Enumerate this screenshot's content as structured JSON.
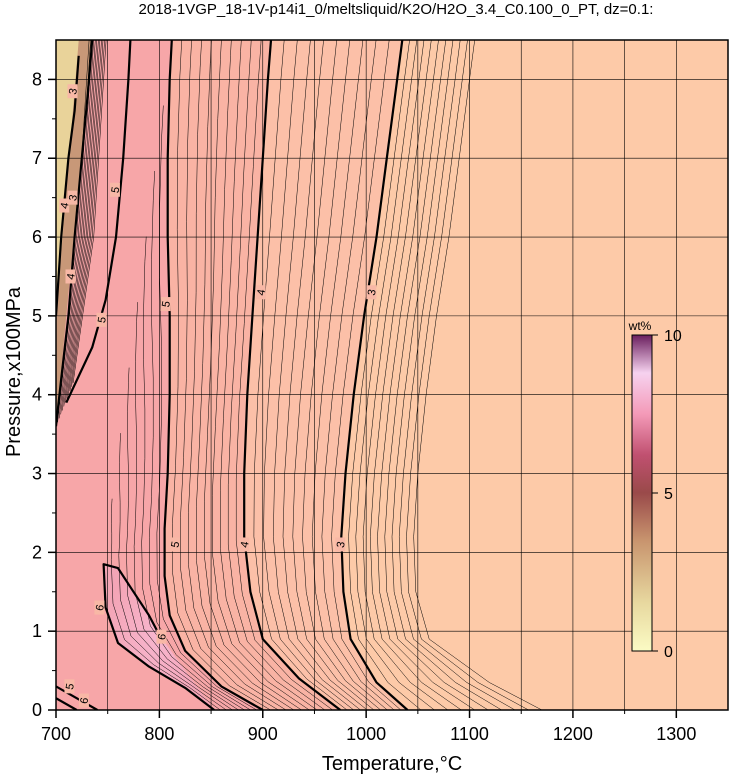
{
  "chart_data": {
    "type": "contour",
    "title": "2018-1VGP_18-1V-p14i1_0/meltsliquid/K2O/H2O_3.4_C0.100_0_PT, dz=0.1:",
    "xlabel": "Temperature,°C",
    "ylabel": "Pressure,x100MPa",
    "xlim": [
      700,
      1350
    ],
    "ylim": [
      0,
      8.5
    ],
    "xticks": [
      "700",
      "800",
      "900",
      "1000",
      "1100",
      "1200",
      "1300"
    ],
    "yticks": [
      "0",
      "1",
      "2",
      "3",
      "4",
      "5",
      "6",
      "7",
      "8"
    ],
    "grid": true,
    "colorbar": {
      "unit": "wt%",
      "min": 0,
      "max": 10,
      "ticks": [
        "0",
        "5",
        "10"
      ],
      "placement": "right-inside"
    },
    "major_contours": [
      {
        "level": "3",
        "points": [
          [
            1040,
            0
          ],
          [
            1010,
            0.35
          ],
          [
            985,
            0.9
          ],
          [
            978,
            1.5
          ],
          [
            976,
            2.2
          ],
          [
            980,
            3.0
          ],
          [
            988,
            4.0
          ],
          [
            998,
            5.0
          ],
          [
            1010,
            6.0
          ],
          [
            1020,
            7.0
          ],
          [
            1030,
            8.0
          ],
          [
            1035,
            8.5
          ]
        ],
        "labels": [
          [
            975,
            2.1
          ],
          [
            1005,
            5.3
          ]
        ]
      },
      {
        "level": "4",
        "points": [
          [
            975,
            0
          ],
          [
            935,
            0.4
          ],
          [
            900,
            0.9
          ],
          [
            888,
            1.5
          ],
          [
            882,
            2.2
          ],
          [
            882,
            3.0
          ],
          [
            885,
            4.0
          ],
          [
            890,
            5.0
          ],
          [
            895,
            6.0
          ],
          [
            900,
            7.0
          ],
          [
            905,
            8.0
          ],
          [
            908,
            8.5
          ]
        ],
        "labels": [
          [
            882,
            2.1
          ],
          [
            898,
            5.3
          ]
        ]
      },
      {
        "level": "5",
        "points": [
          [
            900,
            0
          ],
          [
            860,
            0.3
          ],
          [
            825,
            0.75
          ],
          [
            810,
            1.2
          ],
          [
            805,
            1.7
          ],
          [
            805,
            2.3
          ],
          [
            808,
            3.0
          ],
          [
            810,
            4.0
          ],
          [
            810,
            5.0
          ],
          [
            808,
            6.0
          ],
          [
            808,
            7.0
          ],
          [
            810,
            8.0
          ],
          [
            812,
            8.5
          ]
        ],
        "labels": [
          [
            815,
            2.1
          ],
          [
            806,
            5.15
          ]
        ]
      },
      {
        "level": "6",
        "points": [
          [
            853,
            0
          ],
          [
            825,
            0.28
          ],
          [
            790,
            0.55
          ],
          [
            760,
            0.85
          ],
          [
            748,
            1.3
          ],
          [
            746,
            1.85
          ],
          [
            760,
            1.8
          ],
          [
            775,
            1.5
          ],
          [
            790,
            1.2
          ],
          [
            800,
            0.95
          ]
        ],
        "labels": [
          [
            802,
            0.93
          ],
          [
            742,
            1.3
          ]
        ]
      },
      {
        "level": "5",
        "points": [
          [
            700,
            0.3
          ],
          [
            740,
            0
          ]
        ],
        "labels": [
          [
            713,
            0.3
          ]
        ]
      },
      {
        "level": "6",
        "points": [
          [
            700,
            0.15
          ],
          [
            720,
            0
          ]
        ],
        "labels": [
          [
            727,
            0.12
          ]
        ]
      },
      {
        "level": "5",
        "points": [
          [
            710,
            3.9
          ],
          [
            735,
            4.6
          ],
          [
            748,
            5.2
          ],
          [
            758,
            6.0
          ],
          [
            765,
            7.0
          ],
          [
            770,
            8.0
          ],
          [
            772,
            8.5
          ]
        ],
        "labels": [
          [
            744,
            4.95
          ],
          [
            757,
            6.6
          ]
        ]
      },
      {
        "level": "4",
        "points": [
          [
            700,
            3.6
          ],
          [
            705,
            4.2
          ],
          [
            712,
            5.0
          ],
          [
            718,
            6.0
          ],
          [
            725,
            7.0
          ],
          [
            732,
            8.0
          ],
          [
            735,
            8.5
          ]
        ],
        "labels": [
          [
            714,
            5.5
          ],
          [
            708,
            6.4
          ]
        ]
      },
      {
        "level": "3",
        "points": [
          [
            700,
            5.0
          ],
          [
            705,
            6.0
          ],
          [
            712,
            7.0
          ],
          [
            718,
            7.6
          ],
          [
            722,
            8.3
          ]
        ],
        "labels": [
          [
            716,
            7.85
          ],
          [
            716,
            6.5
          ]
        ]
      }
    ]
  }
}
